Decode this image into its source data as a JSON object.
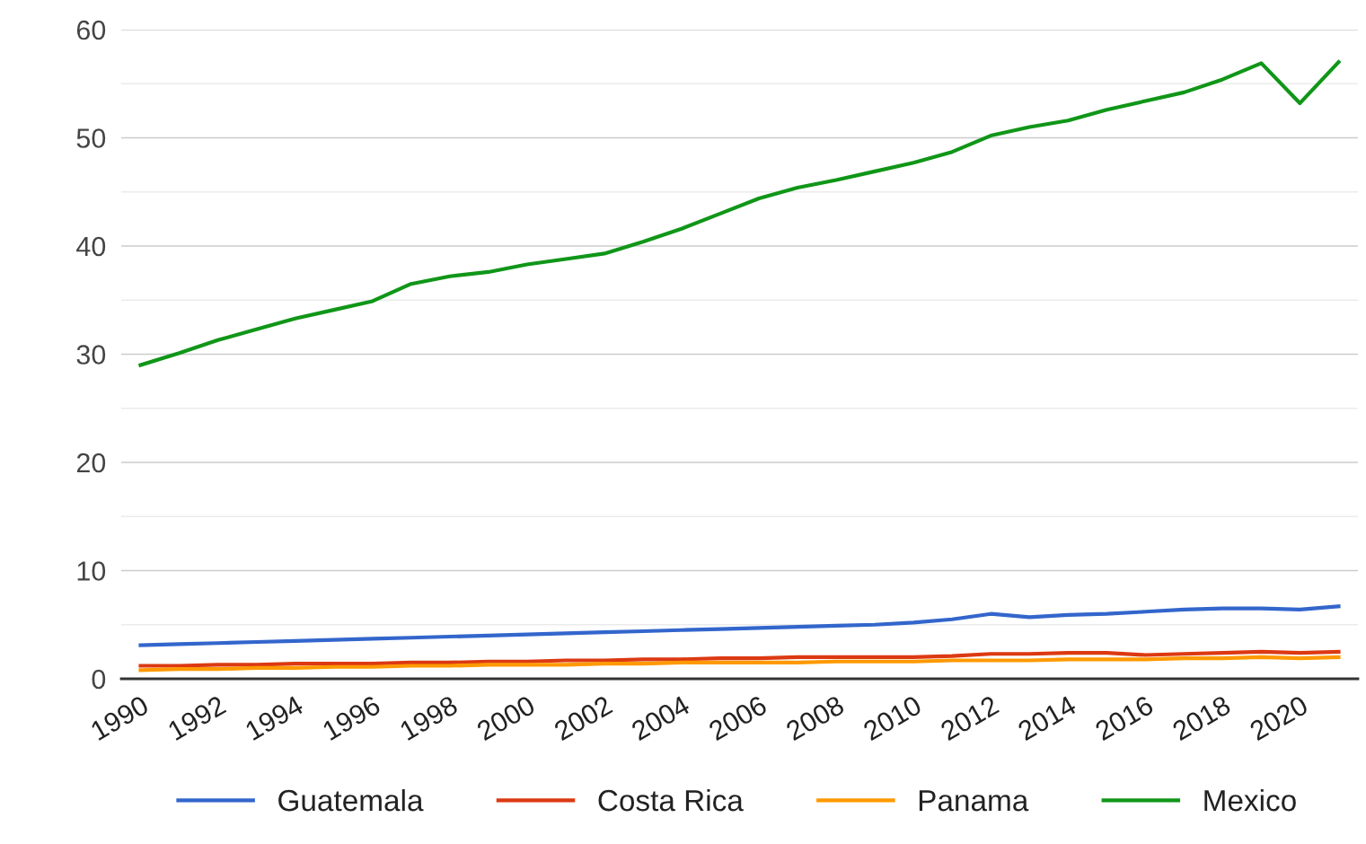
{
  "chart_data": {
    "type": "line",
    "x": [
      1990,
      1991,
      1992,
      1993,
      1994,
      1995,
      1996,
      1997,
      1998,
      1999,
      2000,
      2001,
      2002,
      2003,
      2004,
      2005,
      2006,
      2007,
      2008,
      2009,
      2010,
      2011,
      2012,
      2013,
      2014,
      2015,
      2016,
      2017,
      2018,
      2019,
      2020,
      2021
    ],
    "series": [
      {
        "name": "Guatemala",
        "color": "#3366cc",
        "values": [
          3.1,
          3.2,
          3.3,
          3.4,
          3.5,
          3.6,
          3.7,
          3.8,
          3.9,
          4.0,
          4.1,
          4.2,
          4.3,
          4.4,
          4.5,
          4.6,
          4.7,
          4.8,
          4.9,
          5.0,
          5.2,
          5.5,
          6.0,
          5.7,
          5.9,
          6.0,
          6.2,
          6.4,
          6.5,
          6.5,
          6.4,
          6.7
        ]
      },
      {
        "name": "Costa Rica",
        "color": "#dc3912",
        "values": [
          1.2,
          1.2,
          1.3,
          1.3,
          1.4,
          1.4,
          1.4,
          1.5,
          1.5,
          1.6,
          1.6,
          1.7,
          1.7,
          1.8,
          1.8,
          1.9,
          1.9,
          2.0,
          2.0,
          2.0,
          2.0,
          2.1,
          2.3,
          2.3,
          2.4,
          2.4,
          2.2,
          2.3,
          2.4,
          2.5,
          2.4,
          2.5
        ]
      },
      {
        "name": "Panama",
        "color": "#ff9900",
        "values": [
          0.8,
          0.9,
          0.9,
          1.0,
          1.0,
          1.1,
          1.1,
          1.2,
          1.2,
          1.3,
          1.3,
          1.3,
          1.4,
          1.4,
          1.5,
          1.5,
          1.5,
          1.5,
          1.6,
          1.6,
          1.6,
          1.7,
          1.7,
          1.7,
          1.8,
          1.8,
          1.8,
          1.9,
          1.9,
          2.0,
          1.9,
          2.0
        ]
      },
      {
        "name": "Mexico",
        "color": "#109618",
        "values": [
          29.0,
          30.1,
          31.3,
          32.3,
          33.3,
          34.1,
          34.9,
          36.5,
          37.2,
          37.6,
          38.3,
          38.8,
          39.3,
          40.4,
          41.6,
          43.0,
          44.4,
          45.4,
          46.1,
          46.9,
          47.7,
          48.7,
          50.2,
          51.0,
          51.6,
          52.6,
          53.4,
          54.2,
          55.4,
          56.9,
          53.2,
          57.0
        ]
      }
    ],
    "xlim": [
      1989.5,
      2021.5
    ],
    "xticks": [
      1990,
      1992,
      1994,
      1996,
      1998,
      2000,
      2002,
      2004,
      2006,
      2008,
      2010,
      2012,
      2014,
      2016,
      2018,
      2020
    ],
    "ylim": [
      0,
      60
    ],
    "yticks": [
      0,
      {
        "value": 5,
        "label": null
      },
      10,
      {
        "value": 15,
        "label": null
      },
      20,
      {
        "value": 25,
        "label": null
      },
      30,
      {
        "value": 35,
        "label": null
      },
      40,
      {
        "value": 45,
        "label": null
      },
      50,
      {
        "value": 55,
        "label": null
      },
      60
    ],
    "grid": "y",
    "legend": "bottom",
    "marker": "none",
    "line_style": "solid"
  }
}
